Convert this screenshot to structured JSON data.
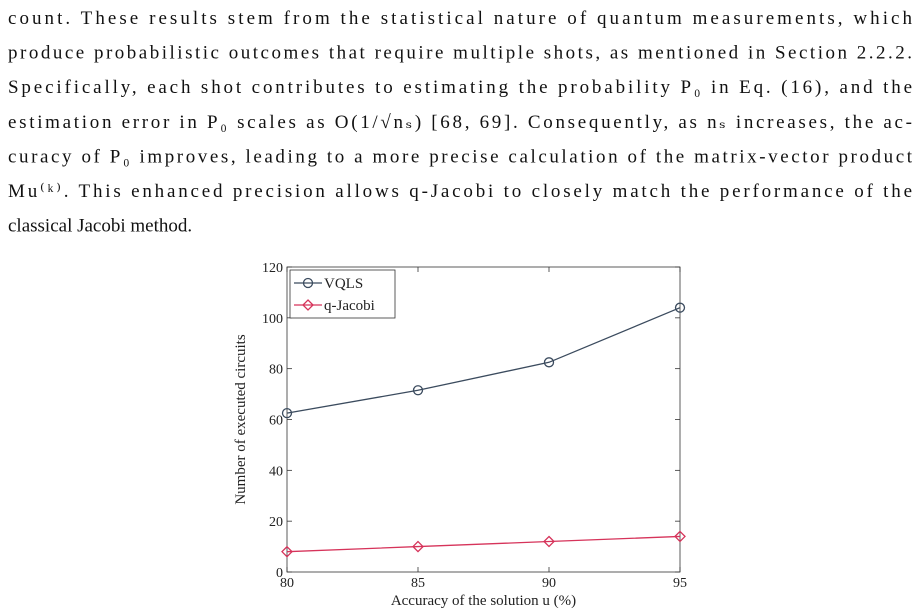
{
  "paragraph": {
    "lines": [
      "count. These results stem from the statistical nature of quantum measurements, which",
      "produce probabilistic outcomes that require multiple shots, as mentioned in Section 2.2.2.",
      "Specifically, each shot contributes to estimating the probability P₀ in Eq. (16), and the",
      "estimation error in P₀ scales as O(1/√nₛ) [68, 69]. Consequently, as nₛ increases, the ac-",
      "curacy of P₀ improves, leading to a more precise calculation of the matrix-vector product",
      "Mu⁽ᵏ⁾. This enhanced precision allows q-Jacobi to closely match the performance of the",
      "classical Jacobi method."
    ]
  },
  "chart_data": {
    "type": "line",
    "xlabel": "Accuracy of the solution u (%)",
    "ylabel": "Number of executed circuits",
    "x": [
      80,
      85,
      90,
      95
    ],
    "xlim": [
      80,
      95
    ],
    "xticks": [
      80,
      85,
      90,
      95
    ],
    "ylim": [
      0,
      120
    ],
    "yticks": [
      0,
      20,
      40,
      60,
      80,
      100,
      120
    ],
    "legend": "upper-left",
    "series": [
      {
        "name": "VQLS",
        "color": "#3b4b5e",
        "marker": "circle",
        "values": [
          62.5,
          71.5,
          82.5,
          104
        ]
      },
      {
        "name": "q-Jacobi",
        "color": "#d6335a",
        "marker": "diamond",
        "values": [
          8,
          10,
          12,
          14
        ]
      }
    ]
  }
}
